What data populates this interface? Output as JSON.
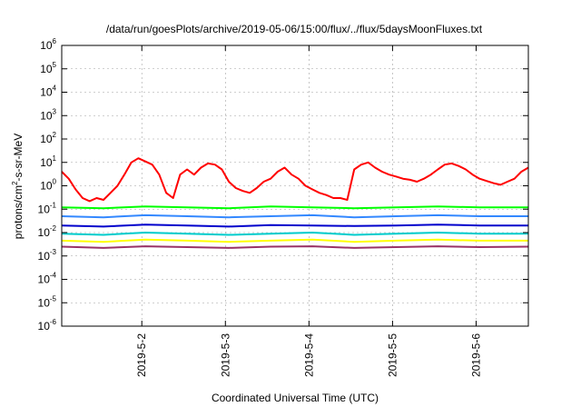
{
  "chart_data": {
    "type": "line",
    "title": "/data/run/goesPlots/archive/2019-05-06/15:00/flux/../flux/5daysMoonFluxes.txt",
    "xlabel": "Coordinated Universal Time (UTC)",
    "ylabel": {
      "prefix": "protons/cm",
      "sup": "2",
      "suffix": "-s-sr-MeV"
    },
    "y_scale": "log",
    "ylim": [
      1e-06,
      1000000.0
    ],
    "y_ticks": [
      {
        "base": "10",
        "exp": "-6",
        "value": 1e-06
      },
      {
        "base": "10",
        "exp": "-5",
        "value": 1e-05
      },
      {
        "base": "10",
        "exp": "-4",
        "value": 0.0001
      },
      {
        "base": "10",
        "exp": "-3",
        "value": 0.001
      },
      {
        "base": "10",
        "exp": "-2",
        "value": 0.01
      },
      {
        "base": "10",
        "exp": "-1",
        "value": 0.1
      },
      {
        "base": "10",
        "exp": "0",
        "value": 1
      },
      {
        "base": "10",
        "exp": "1",
        "value": 10
      },
      {
        "base": "10",
        "exp": "2",
        "value": 100
      },
      {
        "base": "10",
        "exp": "3",
        "value": 1000
      },
      {
        "base": "10",
        "exp": "4",
        "value": 10000
      },
      {
        "base": "10",
        "exp": "5",
        "value": 100000
      },
      {
        "base": "10",
        "exp": "6",
        "value": 1000000
      }
    ],
    "xlim": [
      "2019-05-01 01:00",
      "2019-05-06 15:00"
    ],
    "x_ticks": [
      {
        "label": "2019-5-2",
        "value": "2019-05-02 00:00"
      },
      {
        "label": "2019-5-3",
        "value": "2019-05-03 00:00"
      },
      {
        "label": "2019-5-4",
        "value": "2019-05-04 00:00"
      },
      {
        "label": "2019-5-5",
        "value": "2019-05-05 00:00"
      },
      {
        "label": "2019-5-6",
        "value": "2019-05-06 00:00"
      }
    ],
    "grid": true,
    "series": [
      {
        "color": "#ff0000",
        "x": [
          "2019-05-01 01:00",
          "2019-05-01 03:00",
          "2019-05-01 05:00",
          "2019-05-01 07:00",
          "2019-05-01 09:00",
          "2019-05-01 11:00",
          "2019-05-01 13:00",
          "2019-05-01 15:00",
          "2019-05-01 17:00",
          "2019-05-01 19:00",
          "2019-05-01 21:00",
          "2019-05-01 23:00",
          "2019-05-02 01:00",
          "2019-05-02 03:00",
          "2019-05-02 05:00",
          "2019-05-02 07:00",
          "2019-05-02 09:00",
          "2019-05-02 11:00",
          "2019-05-02 13:00",
          "2019-05-02 15:00",
          "2019-05-02 17:00",
          "2019-05-02 19:00",
          "2019-05-02 21:00",
          "2019-05-02 23:00",
          "2019-05-03 01:00",
          "2019-05-03 03:00",
          "2019-05-03 05:00",
          "2019-05-03 07:00",
          "2019-05-03 09:00",
          "2019-05-03 11:00",
          "2019-05-03 13:00",
          "2019-05-03 15:00",
          "2019-05-03 17:00",
          "2019-05-03 19:00",
          "2019-05-03 21:00",
          "2019-05-03 23:00",
          "2019-05-04 01:00",
          "2019-05-04 03:00",
          "2019-05-04 05:00",
          "2019-05-04 07:00",
          "2019-05-04 09:00",
          "2019-05-04 11:00",
          "2019-05-04 13:00",
          "2019-05-04 15:00",
          "2019-05-04 17:00",
          "2019-05-04 19:00",
          "2019-05-04 21:00",
          "2019-05-04 23:00",
          "2019-05-05 01:00",
          "2019-05-05 03:00",
          "2019-05-05 05:00",
          "2019-05-05 07:00",
          "2019-05-05 09:00",
          "2019-05-05 11:00",
          "2019-05-05 13:00",
          "2019-05-05 15:00",
          "2019-05-05 17:00",
          "2019-05-05 19:00",
          "2019-05-05 21:00",
          "2019-05-05 23:00",
          "2019-05-06 01:00",
          "2019-05-06 03:00",
          "2019-05-06 05:00",
          "2019-05-06 07:00",
          "2019-05-06 09:00",
          "2019-05-06 11:00",
          "2019-05-06 13:00",
          "2019-05-06 15:00"
        ],
        "y": [
          4,
          2,
          0.7,
          0.3,
          0.22,
          0.3,
          0.25,
          0.5,
          1,
          3,
          10,
          15,
          11,
          8,
          3,
          0.5,
          0.3,
          3,
          5,
          3,
          6,
          9,
          8,
          5,
          1.5,
          0.8,
          0.6,
          0.5,
          0.8,
          1.5,
          2,
          4,
          6,
          3,
          2,
          1,
          0.7,
          0.5,
          0.4,
          0.3,
          0.3,
          0.25,
          5,
          8,
          10,
          6,
          4,
          3,
          2.5,
          2,
          1.8,
          1.5,
          2,
          3,
          5,
          8,
          9,
          7,
          5,
          3,
          2,
          1.6,
          1.3,
          1.1,
          1.5,
          2,
          4,
          6
        ]
      },
      {
        "color": "#00ff00",
        "x": [
          "2019-05-01 01:00",
          "2019-05-01 13:00",
          "2019-05-02 01:00",
          "2019-05-02 13:00",
          "2019-05-03 01:00",
          "2019-05-03 13:00",
          "2019-05-04 01:00",
          "2019-05-04 13:00",
          "2019-05-05 01:00",
          "2019-05-05 13:00",
          "2019-05-06 01:00",
          "2019-05-06 15:00"
        ],
        "y": [
          0.12,
          0.11,
          0.13,
          0.12,
          0.11,
          0.13,
          0.12,
          0.11,
          0.12,
          0.13,
          0.12,
          0.12
        ]
      },
      {
        "color": "#3388ff",
        "x": [
          "2019-05-01 01:00",
          "2019-05-01 13:00",
          "2019-05-02 01:00",
          "2019-05-02 13:00",
          "2019-05-03 01:00",
          "2019-05-03 13:00",
          "2019-05-04 01:00",
          "2019-05-04 13:00",
          "2019-05-05 01:00",
          "2019-05-05 13:00",
          "2019-05-06 01:00",
          "2019-05-06 15:00"
        ],
        "y": [
          0.05,
          0.045,
          0.055,
          0.05,
          0.045,
          0.05,
          0.055,
          0.045,
          0.05,
          0.055,
          0.05,
          0.05
        ]
      },
      {
        "color": "#0000cc",
        "x": [
          "2019-05-01 01:00",
          "2019-05-01 13:00",
          "2019-05-02 01:00",
          "2019-05-02 13:00",
          "2019-05-03 01:00",
          "2019-05-03 13:00",
          "2019-05-04 01:00",
          "2019-05-04 13:00",
          "2019-05-05 01:00",
          "2019-05-05 13:00",
          "2019-05-06 01:00",
          "2019-05-06 15:00"
        ],
        "y": [
          0.02,
          0.018,
          0.022,
          0.02,
          0.018,
          0.021,
          0.02,
          0.019,
          0.02,
          0.022,
          0.02,
          0.02
        ]
      },
      {
        "color": "#00cccc",
        "x": [
          "2019-05-01 01:00",
          "2019-05-01 13:00",
          "2019-05-02 01:00",
          "2019-05-02 13:00",
          "2019-05-03 01:00",
          "2019-05-03 13:00",
          "2019-05-04 01:00",
          "2019-05-04 13:00",
          "2019-05-05 01:00",
          "2019-05-05 13:00",
          "2019-05-06 01:00",
          "2019-05-06 15:00"
        ],
        "y": [
          0.009,
          0.008,
          0.01,
          0.009,
          0.008,
          0.009,
          0.01,
          0.008,
          0.009,
          0.01,
          0.009,
          0.009
        ]
      },
      {
        "color": "#ffff00",
        "x": [
          "2019-05-01 01:00",
          "2019-05-01 13:00",
          "2019-05-02 01:00",
          "2019-05-02 13:00",
          "2019-05-03 01:00",
          "2019-05-03 13:00",
          "2019-05-04 01:00",
          "2019-05-04 13:00",
          "2019-05-05 01:00",
          "2019-05-05 13:00",
          "2019-05-06 01:00",
          "2019-05-06 15:00"
        ],
        "y": [
          0.0045,
          0.004,
          0.005,
          0.0045,
          0.004,
          0.0045,
          0.005,
          0.004,
          0.0045,
          0.005,
          0.0045,
          0.0045
        ]
      },
      {
        "color": "#993366",
        "x": [
          "2019-05-01 01:00",
          "2019-05-01 13:00",
          "2019-05-02 01:00",
          "2019-05-02 13:00",
          "2019-05-03 01:00",
          "2019-05-03 13:00",
          "2019-05-04 01:00",
          "2019-05-04 13:00",
          "2019-05-05 01:00",
          "2019-05-05 13:00",
          "2019-05-06 01:00",
          "2019-05-06 15:00"
        ],
        "y": [
          0.0025,
          0.0022,
          0.0026,
          0.0024,
          0.0022,
          0.0025,
          0.0026,
          0.0022,
          0.0024,
          0.0026,
          0.0024,
          0.0025
        ]
      }
    ]
  }
}
